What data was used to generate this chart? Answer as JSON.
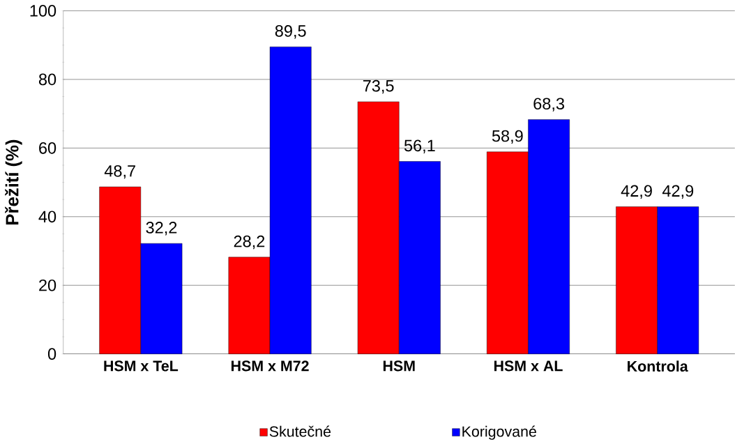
{
  "chart_data": {
    "type": "bar",
    "ylabel": "Přežití (%)",
    "categories": [
      "HSM x TeL",
      "HSM x M72",
      "HSM",
      "HSM x AL",
      "Kontrola"
    ],
    "series": [
      {
        "name": "Skutečné",
        "color": "#ff0000",
        "values": [
          48.7,
          28.2,
          73.5,
          58.9,
          42.9
        ],
        "value_labels": [
          "48,7",
          "28,2",
          "73,5",
          "58,9",
          "42,9"
        ]
      },
      {
        "name": "Korigované",
        "color": "#0000ff",
        "values": [
          32.2,
          89.5,
          56.1,
          68.3,
          42.9
        ],
        "value_labels": [
          "32,2",
          "89,5",
          "56,1",
          "68,3",
          "42,9"
        ]
      }
    ],
    "ylim": [
      0,
      100
    ],
    "yticks": [
      0,
      20,
      40,
      60,
      80,
      100
    ],
    "grid": "y",
    "legend": "bottom"
  }
}
